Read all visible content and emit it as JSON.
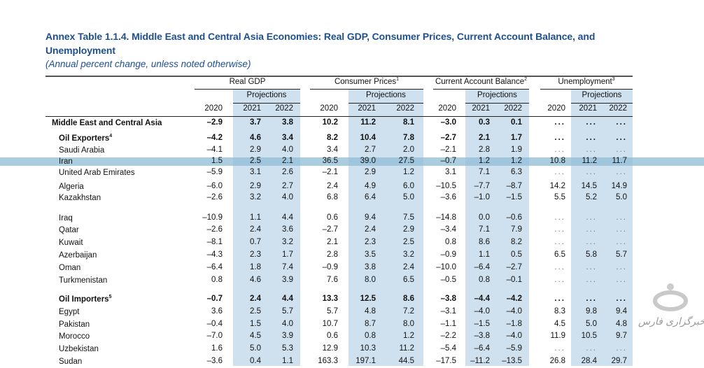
{
  "title_line1": "Annex Table 1.1.4. Middle East and Central Asia Economies: Real GDP, Consumer Prices, Current Account Balance, and",
  "title_line2": "Unemployment",
  "subtitle": "(Annual percent change, unless noted otherwise)",
  "groups": [
    {
      "label": "Real GDP",
      "note": ""
    },
    {
      "label": "Consumer Prices",
      "note": "1"
    },
    {
      "label": "Current Account Balance",
      "note": "2"
    },
    {
      "label": "Unemployment",
      "note": "3"
    }
  ],
  "projections_label": "Projections",
  "years": [
    "2020",
    "2021",
    "2022"
  ],
  "highlight_color": "#8fbcd6",
  "projection_shade": "#cfe1ef",
  "rows": [
    {
      "label": "Middle East and Central Asia",
      "note": "",
      "bold": true,
      "level": 0,
      "values": [
        "–2.9",
        "3.7",
        "3.8",
        "10.2",
        "11.2",
        "8.1",
        "–3.0",
        "0.3",
        "0.1",
        "...",
        "...",
        "..."
      ]
    },
    {
      "label": "Oil Exporters",
      "note": "4",
      "bold": true,
      "level": 1,
      "values": [
        "–4.2",
        "4.6",
        "3.4",
        "8.2",
        "10.4",
        "7.8",
        "–2.7",
        "2.1",
        "1.7",
        "...",
        "...",
        "..."
      ]
    },
    {
      "label": "Saudi Arabia",
      "note": "",
      "bold": false,
      "level": 1,
      "values": [
        "–4.1",
        "2.9",
        "4.0",
        "3.4",
        "2.7",
        "2.0",
        "–2.1",
        "2.8",
        "1.9",
        "...",
        "...",
        "..."
      ]
    },
    {
      "label": "Iran",
      "note": "",
      "bold": false,
      "level": 1,
      "highlighted": true,
      "values": [
        "1.5",
        "2.5",
        "2.1",
        "36.5",
        "39.0",
        "27.5",
        "–0.7",
        "1.2",
        "1.2",
        "10.8",
        "11.2",
        "11.7"
      ]
    },
    {
      "label": "United Arab Emirates",
      "note": "",
      "bold": false,
      "level": 1,
      "values": [
        "–5.9",
        "3.1",
        "2.6",
        "–2.1",
        "2.9",
        "1.2",
        "3.1",
        "7.1",
        "6.3",
        "...",
        "...",
        "..."
      ]
    },
    {
      "label": "Algeria",
      "note": "",
      "bold": false,
      "level": 1,
      "values": [
        "–6.0",
        "2.9",
        "2.7",
        "2.4",
        "4.9",
        "6.0",
        "–10.5",
        "–7.7",
        "–8.7",
        "14.2",
        "14.5",
        "14.9"
      ]
    },
    {
      "label": "Kazakhstan",
      "note": "",
      "bold": false,
      "level": 1,
      "values": [
        "–2.6",
        "3.2",
        "4.0",
        "6.8",
        "6.4",
        "5.0",
        "–3.6",
        "–1.0",
        "–1.5",
        "5.5",
        "5.2",
        "5.0"
      ]
    },
    {
      "label": "Iraq",
      "note": "",
      "bold": false,
      "level": 1,
      "values": [
        "–10.9",
        "1.1",
        "4.4",
        "0.6",
        "9.4",
        "7.5",
        "–14.8",
        "0.0",
        "–0.6",
        "...",
        "...",
        "..."
      ]
    },
    {
      "label": "Qatar",
      "note": "",
      "bold": false,
      "level": 1,
      "values": [
        "–2.6",
        "2.4",
        "3.6",
        "–2.7",
        "2.4",
        "2.9",
        "–3.4",
        "7.1",
        "7.9",
        "...",
        "...",
        "..."
      ]
    },
    {
      "label": "Kuwait",
      "note": "",
      "bold": false,
      "level": 1,
      "values": [
        "–8.1",
        "0.7",
        "3.2",
        "2.1",
        "2.3",
        "2.5",
        "0.8",
        "8.6",
        "8.2",
        "...",
        "...",
        "..."
      ]
    },
    {
      "label": "Azerbaijan",
      "note": "",
      "bold": false,
      "level": 1,
      "values": [
        "–4.3",
        "2.3",
        "1.7",
        "2.8",
        "3.5",
        "3.2",
        "–0.9",
        "1.1",
        "0.5",
        "6.5",
        "5.8",
        "5.7"
      ]
    },
    {
      "label": "Oman",
      "note": "",
      "bold": false,
      "level": 1,
      "values": [
        "–6.4",
        "1.8",
        "7.4",
        "–0.9",
        "3.8",
        "2.4",
        "–10.0",
        "–6.4",
        "–2.7",
        "...",
        "...",
        "..."
      ]
    },
    {
      "label": "Turkmenistan",
      "note": "",
      "bold": false,
      "level": 1,
      "values": [
        "0.8",
        "4.6",
        "3.9",
        "7.6",
        "8.0",
        "6.5",
        "–0.5",
        "0.8",
        "–0.1",
        "...",
        "...",
        "..."
      ]
    },
    {
      "label": "Oil Importers",
      "note": "5",
      "bold": true,
      "level": 1,
      "values": [
        "–0.7",
        "2.4",
        "4.4",
        "13.3",
        "12.5",
        "8.6",
        "–3.8",
        "–4.4",
        "–4.2",
        "...",
        "...",
        "..."
      ]
    },
    {
      "label": "Egypt",
      "note": "",
      "bold": false,
      "level": 1,
      "values": [
        "3.6",
        "2.5",
        "5.7",
        "5.7",
        "4.8",
        "7.2",
        "–3.1",
        "–4.0",
        "–4.0",
        "8.3",
        "9.8",
        "9.4"
      ]
    },
    {
      "label": "Pakistan",
      "note": "",
      "bold": false,
      "level": 1,
      "values": [
        "–0.4",
        "1.5",
        "4.0",
        "10.7",
        "8.7",
        "8.0",
        "–1.1",
        "–1.5",
        "–1.8",
        "4.5",
        "5.0",
        "4.8"
      ]
    },
    {
      "label": "Morocco",
      "note": "",
      "bold": false,
      "level": 1,
      "values": [
        "–7.0",
        "4.5",
        "3.9",
        "0.6",
        "0.8",
        "1.2",
        "–2.2",
        "–3.8",
        "–4.0",
        "11.9",
        "10.5",
        "9.7"
      ]
    },
    {
      "label": "Uzbekistan",
      "note": "",
      "bold": false,
      "level": 1,
      "values": [
        "1.6",
        "5.0",
        "5.3",
        "12.9",
        "10.3",
        "11.2",
        "–5.4",
        "–6.4",
        "–5.9",
        "...",
        "...",
        "..."
      ]
    },
    {
      "label": "Sudan",
      "note": "",
      "bold": false,
      "level": 1,
      "values": [
        "–3.6",
        "0.4",
        "1.1",
        "163.3",
        "197.1",
        "44.5",
        "–17.5",
        "–11.2",
        "–13.5",
        "26.8",
        "28.4",
        "29.7"
      ]
    }
  ],
  "watermark": {
    "text": "خبرگزاری فارس",
    "icon": "fars-news-logo"
  }
}
